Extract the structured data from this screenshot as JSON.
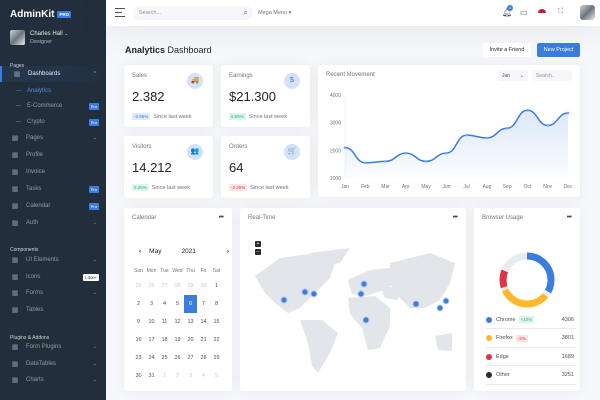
{
  "sidebar": {
    "brand": "AdminKit",
    "brand_badge": "PRO",
    "user": {
      "name": "Charles Hall",
      "role": "Designer"
    },
    "sections": [
      "Pages",
      "Components",
      "Plugins & Addons"
    ],
    "items": [
      {
        "label": "Dashboards",
        "icon": "sliders-icon",
        "chevron": "⌃",
        "active": true
      },
      {
        "label": "Analytics",
        "sub": true,
        "on": true
      },
      {
        "label": "E-Commerce",
        "sub": true,
        "badge": "Pro"
      },
      {
        "label": "Crypto",
        "sub": true,
        "badge": "Pro"
      },
      {
        "label": "Pages",
        "icon": "layout-icon",
        "chevron": "⌄"
      },
      {
        "label": "Profile",
        "icon": "user-icon"
      },
      {
        "label": "Invoice",
        "icon": "credit-card-icon"
      },
      {
        "label": "Tasks",
        "icon": "list-icon",
        "badge": "Pro"
      },
      {
        "label": "Calendar",
        "icon": "calendar-icon",
        "badge": "Pro"
      },
      {
        "label": "Auth",
        "icon": "users-icon",
        "chevron": "⌄"
      },
      {
        "label": "UI Elements",
        "icon": "briefcase-icon",
        "chevron": "⌄"
      },
      {
        "label": "Icons",
        "icon": "coffee-icon",
        "badge": "1.500+"
      },
      {
        "label": "Forms",
        "icon": "check-circle-icon",
        "chevron": "⌄"
      },
      {
        "label": "Tables",
        "icon": "table-icon"
      },
      {
        "label": "Form Plugins",
        "icon": "check-square-icon",
        "chevron": "⌄"
      },
      {
        "label": "DataTables",
        "icon": "table-icon",
        "chevron": "⌄"
      },
      {
        "label": "Charts",
        "icon": "bar-chart-icon",
        "chevron": "⌄"
      }
    ]
  },
  "topbar": {
    "search_placeholder": "Search...",
    "mega_menu": "Mega Menu ▾",
    "notif_count": "4"
  },
  "page": {
    "title_bold": "Analytics",
    "title_rest": " Dashboard",
    "invite_label": "Invite a Friend",
    "new_project_label": "New Project"
  },
  "stats": [
    {
      "label": "Sales",
      "value": "2.382",
      "change": "-3.65%",
      "tone": "red",
      "since": "Since last week",
      "icon": "🚚"
    },
    {
      "label": "Earnings",
      "value": "$21.300",
      "change": "6.65%",
      "tone": "grn",
      "since": "Since last week",
      "icon": "$"
    },
    {
      "label": "Visitors",
      "value": "14.212",
      "change": "5.25%",
      "tone": "grn",
      "since": "Since last week",
      "icon": "👥"
    },
    {
      "label": "Orders",
      "value": "64",
      "change": "-2.25%",
      "tone": "red",
      "since": "Since last week",
      "icon": "🛒"
    }
  ],
  "movement": {
    "title": "Recent Movement",
    "month_select": "Jan",
    "search_placeholder": "Search.."
  },
  "chart_data": {
    "type": "area",
    "title": "Recent Movement",
    "categories": [
      "Jan",
      "Feb",
      "Mar",
      "Apr",
      "May",
      "Jun",
      "Jul",
      "Aug",
      "Sep",
      "Oct",
      "Nov",
      "Dec"
    ],
    "series": [
      {
        "name": "Movement",
        "values": [
          2100,
          1550,
          1600,
          1900,
          1600,
          1900,
          2550,
          2450,
          2800,
          3450,
          2900,
          3350
        ]
      }
    ],
    "yticks": [
      1000,
      2000,
      3000,
      4000
    ],
    "ylim": [
      1000,
      4000
    ],
    "color": "#3b7ddd",
    "grid": false
  },
  "calendar": {
    "title": "Calendar",
    "month": "May",
    "year": "2021",
    "weekdays": [
      "Sun",
      "Mon",
      "Tue",
      "Wed",
      "Thu",
      "Fri",
      "Sat"
    ],
    "days": [
      [
        "25",
        "m"
      ],
      [
        "26",
        "m"
      ],
      [
        "27",
        "m"
      ],
      [
        "28",
        "m"
      ],
      [
        "29",
        "m"
      ],
      [
        "30",
        "m"
      ],
      [
        "1",
        ""
      ],
      [
        "2",
        ""
      ],
      [
        "3",
        ""
      ],
      [
        "4",
        ""
      ],
      [
        "5",
        ""
      ],
      [
        "6",
        "s"
      ],
      [
        "7",
        ""
      ],
      [
        "8",
        ""
      ],
      [
        "9",
        ""
      ],
      [
        "10",
        ""
      ],
      [
        "11",
        ""
      ],
      [
        "12",
        ""
      ],
      [
        "13",
        ""
      ],
      [
        "14",
        ""
      ],
      [
        "15",
        ""
      ],
      [
        "16",
        ""
      ],
      [
        "17",
        ""
      ],
      [
        "18",
        ""
      ],
      [
        "19",
        ""
      ],
      [
        "20",
        ""
      ],
      [
        "21",
        ""
      ],
      [
        "22",
        ""
      ],
      [
        "23",
        ""
      ],
      [
        "24",
        ""
      ],
      [
        "25",
        ""
      ],
      [
        "26",
        ""
      ],
      [
        "27",
        ""
      ],
      [
        "28",
        ""
      ],
      [
        "29",
        ""
      ],
      [
        "30",
        ""
      ],
      [
        "31",
        ""
      ],
      [
        "1",
        "m"
      ],
      [
        "2",
        "m"
      ],
      [
        "3",
        "m"
      ],
      [
        "4",
        "m"
      ],
      [
        "5",
        "m"
      ]
    ]
  },
  "realtime": {
    "title": "Real-Time",
    "zoom_in": "+",
    "zoom_out": "−"
  },
  "browser": {
    "title": "Browser Usage",
    "rows": [
      {
        "name": "Chrome",
        "value": "4306",
        "color": "#3b7ddd",
        "badge": "+10%",
        "tone": "grn"
      },
      {
        "name": "Firefox",
        "value": "3801",
        "color": "#fcb92c",
        "badge": "-3%",
        "tone": "red"
      },
      {
        "name": "Edge",
        "value": "1689",
        "color": "#dc3545"
      },
      {
        "name": "Other",
        "value": "3251",
        "color": "#222e3c"
      }
    ]
  }
}
